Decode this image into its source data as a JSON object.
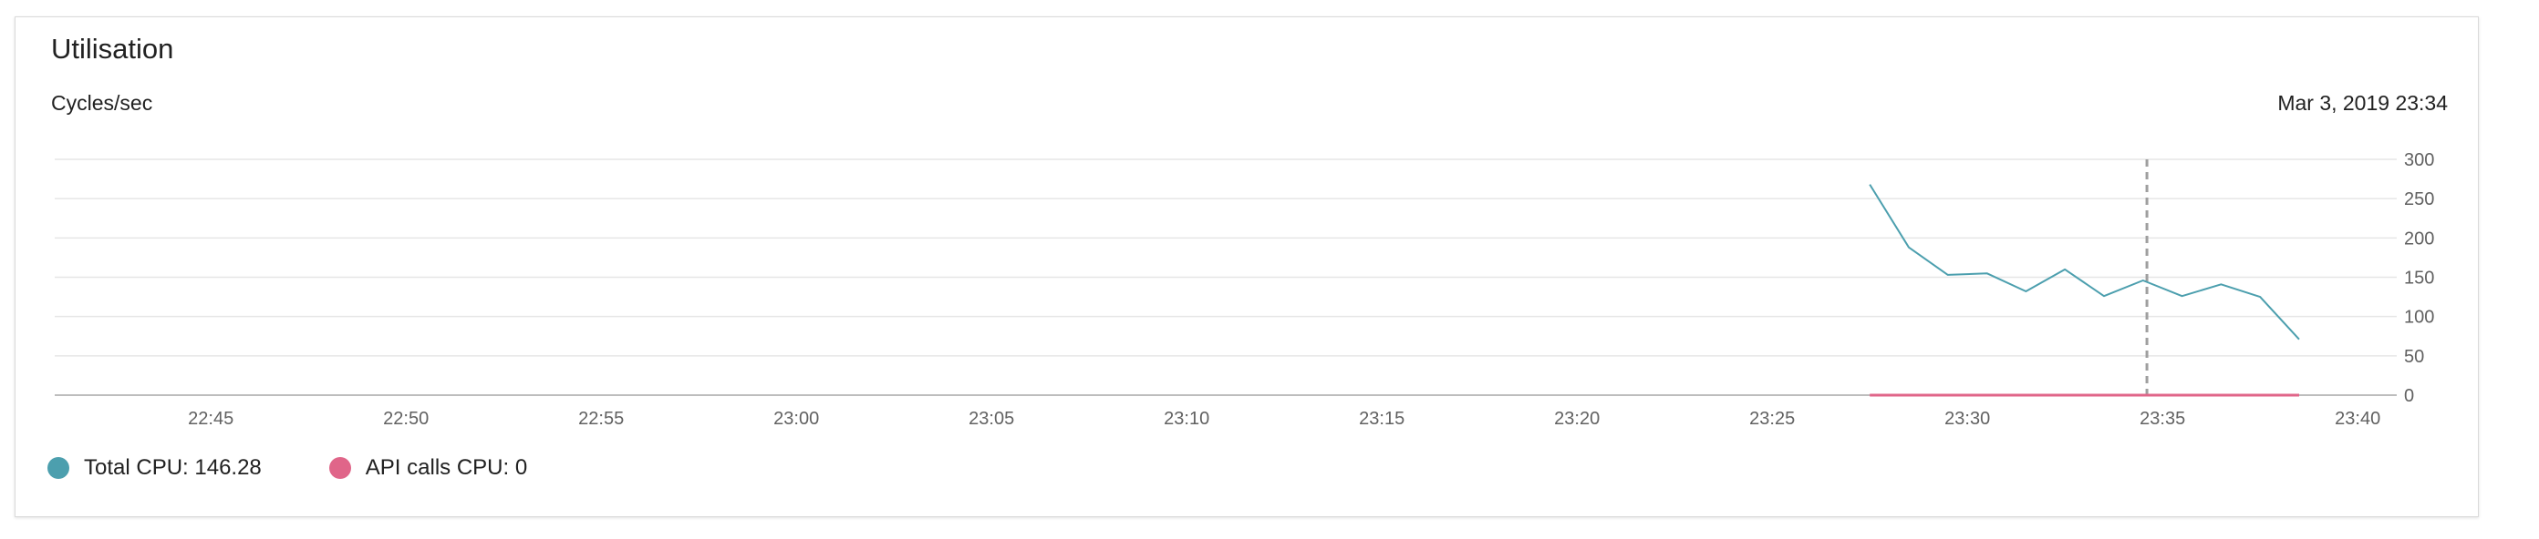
{
  "card": {
    "title": "Utilisation",
    "unit_label": "Cycles/sec",
    "hover_datetime": "Mar 3, 2019 23:34"
  },
  "legend": [
    {
      "label": "Total CPU: 146.28",
      "color": "#4c9fae"
    },
    {
      "label": "API calls CPU: 0",
      "color": "#e06589"
    }
  ],
  "chart_data": {
    "type": "line",
    "title": "Utilisation",
    "ylabel": "Cycles/sec",
    "xlabel": "",
    "ylim": [
      0,
      300
    ],
    "yticks": [
      0,
      50,
      100,
      150,
      200,
      250,
      300
    ],
    "xlim": [
      "22:41",
      "23:41"
    ],
    "xticks": [
      "22:45",
      "22:50",
      "22:55",
      "23:00",
      "23:05",
      "23:10",
      "23:15",
      "23:20",
      "23:25",
      "23:30",
      "23:35",
      "23:40"
    ],
    "grid": true,
    "legend_position": "bottom-left",
    "hover_line_x": "23:34.6",
    "series": [
      {
        "name": "Total CPU",
        "color": "#4c9fae",
        "points": [
          [
            "23:27.5",
            268
          ],
          [
            "23:28.5",
            188
          ],
          [
            "23:29.5",
            153
          ],
          [
            "23:30.5",
            155
          ],
          [
            "23:31.5",
            132
          ],
          [
            "23:32.5",
            160
          ],
          [
            "23:33.5",
            126
          ],
          [
            "23:34.5",
            146
          ],
          [
            "23:35.5",
            126
          ],
          [
            "23:36.5",
            141
          ],
          [
            "23:37.5",
            125
          ],
          [
            "23:38.5",
            71
          ]
        ]
      },
      {
        "name": "API calls CPU",
        "color": "#e06589",
        "points": [
          [
            "23:27.5",
            0
          ],
          [
            "23:28.5",
            0
          ],
          [
            "23:29.5",
            0
          ],
          [
            "23:30.5",
            0
          ],
          [
            "23:31.5",
            0
          ],
          [
            "23:32.5",
            0
          ],
          [
            "23:33.5",
            0
          ],
          [
            "23:34.5",
            0
          ],
          [
            "23:35.5",
            0
          ],
          [
            "23:36.5",
            0
          ],
          [
            "23:37.5",
            0
          ],
          [
            "23:38.5",
            0
          ]
        ]
      }
    ]
  }
}
